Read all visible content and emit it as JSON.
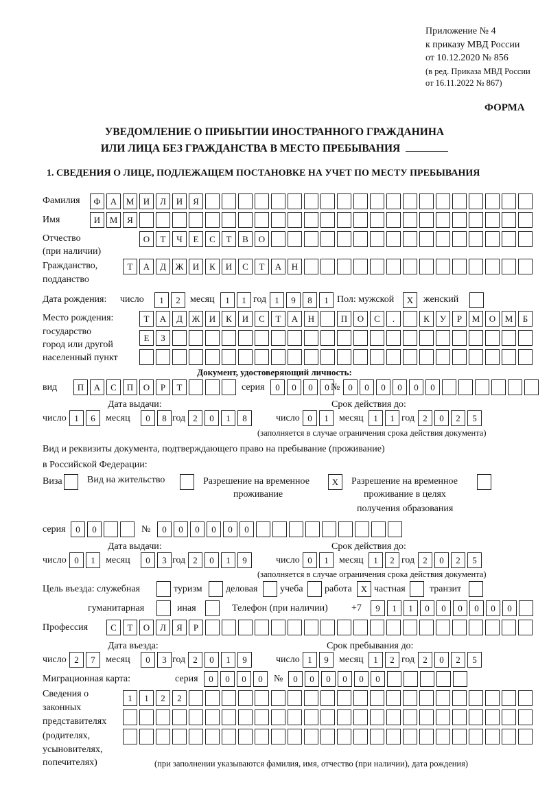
{
  "header": {
    "appendix": "Приложение № 4",
    "order": "к приказу МВД России",
    "order_date": "от 10.12.2020 № 856",
    "edition_1": "(в ред. Приказа МВД России",
    "edition_2": "от 16.11.2022 № 867)",
    "form_label": "ФОРМА",
    "title_1": "УВЕДОМЛЕНИЕ О ПРИБЫТИИ ИНОСТРАННОГО ГРАЖДАНИНА",
    "title_2": "ИЛИ ЛИЦА БЕЗ ГРАЖДАНСТВА В МЕСТО ПРЕБЫВАНИЯ",
    "section_1": "1. СВЕДЕНИЯ О ЛИЦЕ, ПОДЛЕЖАЩЕМ ПОСТАНОВКЕ НА УЧЕТ ПО МЕСТУ ПРЕБЫВАНИЯ"
  },
  "labels": {
    "surname": "Фамилия",
    "name": "Имя",
    "patronymic_1": "Отчество",
    "patronymic_2": "(при наличии)",
    "citizenship_1": "Гражданство,",
    "citizenship_2": "подданство",
    "birth_date": "Дата рождения:",
    "day": "число",
    "month": "месяц",
    "year": "год",
    "sex": "Пол: мужской",
    "female": "женский",
    "birthplace_1": "Место рождения:",
    "birthplace_2": "государство",
    "birthplace_3": "город или другой",
    "birthplace_4": "населенный пункт",
    "id_doc": "Документ, удостоверяющий личность:",
    "kind": "вид",
    "series": "серия",
    "number": "№",
    "issue_date": "Дата выдачи:",
    "valid_until": "Срок действия до:",
    "valid_note": "(заполняется в случае ограничения срока действия документа)",
    "right_doc_1": "Вид и реквизиты документа, подтверждающего право на пребывание (проживание)",
    "right_doc_2": "в Российской Федерации:",
    "visa": "Виза",
    "residence": "Вид на жительство",
    "temp_permit_1": "Разрешение на временное",
    "temp_permit_2": "проживание",
    "edu_permit_1": "Разрешение на временное",
    "edu_permit_2": "проживание в целях",
    "edu_permit_3": "получения образования",
    "purpose": "Цель въезда: служебная",
    "tourism": "туризм",
    "business": "деловая",
    "study": "учеба",
    "work": "работа",
    "private": "частная",
    "transit": "транзит",
    "humanitarian": "гуманитарная",
    "other": "иная",
    "phone": "Телефон (при наличии)",
    "phone_prefix": "+7",
    "profession": "Профессия",
    "entry_date": "Дата въезда:",
    "stay_until": "Срок пребывания до:",
    "migration_card": "Миграционная карта:",
    "legal_rep_1": "Сведения о",
    "legal_rep_2": "законных",
    "legal_rep_3": "представителях",
    "legal_rep_4": "(родителях,",
    "legal_rep_5": "усыновителях,",
    "legal_rep_6": "попечителях)",
    "legal_rep_note": "(при заполнении указываются фамилия, имя, отчество (при наличии), дата рождения)"
  },
  "person": {
    "surname": "ФАМИЛИЯ",
    "name": "ИМЯ",
    "patronymic": "ОТЧЕСТВО",
    "citizenship": "ТАДЖИКИСТАН",
    "birth_day": "12",
    "birth_month": "11",
    "birth_year": "1981",
    "sex_male": "X",
    "sex_female": "",
    "birthplace_rows": [
      "ТАДЖИКИСТАН ПОС. КУРМОМБ",
      "ЕЗ",
      ""
    ]
  },
  "id_document": {
    "kind": "ПАСПОРТ",
    "series": "0000",
    "number": "000000",
    "issue_day": "16",
    "issue_month": "08",
    "issue_year": "2018",
    "valid_day": "01",
    "valid_month": "11",
    "valid_year": "2025"
  },
  "stay_document": {
    "visa": "",
    "residence_permit": "",
    "temp_residence": "X",
    "temp_residence_education": "",
    "series": "00",
    "number": "000000",
    "issue_day": "01",
    "issue_month": "03",
    "issue_year": "2019",
    "valid_day": "01",
    "valid_month": "12",
    "valid_year": "2025"
  },
  "purpose": {
    "official": "",
    "tourism": "",
    "business": "",
    "study": "",
    "work": "X",
    "private": "",
    "transit": "",
    "humanitarian": "",
    "other": ""
  },
  "phone": "911000000",
  "profession": "СТОЛЯР",
  "entry": {
    "day": "27",
    "month": "03",
    "year": "2019",
    "stay_day": "19",
    "stay_month": "12",
    "stay_year": "2025"
  },
  "migration_card": {
    "series": "0000",
    "number": "000000"
  },
  "legal_representatives_rows": [
    "1122",
    "",
    ""
  ]
}
